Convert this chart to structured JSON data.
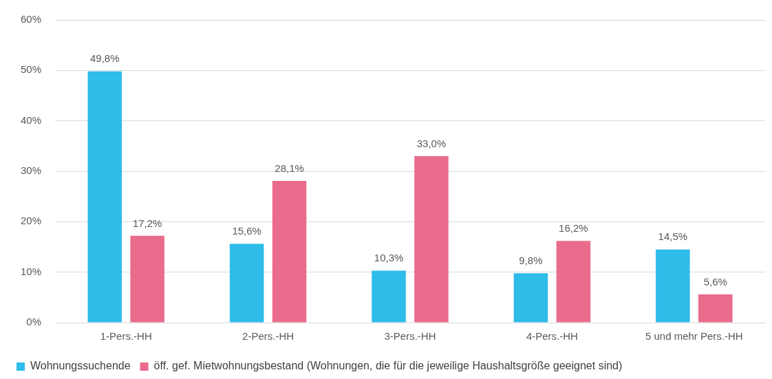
{
  "chart_data": {
    "type": "bar",
    "categories": [
      "1-Pers.-HH",
      "2-Pers.-HH",
      "3-Pers.-HH",
      "4-Pers.-HH",
      "5 und mehr Pers.-HH"
    ],
    "series": [
      {
        "name": "Wohnungssuchende",
        "color": "#2ebce9",
        "values": [
          49.8,
          15.6,
          10.3,
          9.8,
          14.5
        ],
        "value_labels": [
          "49,8%",
          "15,6%",
          "10,3%",
          "9,8%",
          "14,5%"
        ]
      },
      {
        "name": "öff. gef. Mietwohnungsbestand (Wohnungen, die für die jeweilige Haushaltsgröße geeignet sind)",
        "color": "#ea6c8d",
        "values": [
          17.2,
          28.1,
          33.0,
          16.2,
          5.6
        ],
        "value_labels": [
          "17,2%",
          "28,1%",
          "33,0%",
          "16,2%",
          "5,6%"
        ]
      }
    ],
    "ylim": [
      0,
      60
    ],
    "yticks": [
      {
        "value": 0,
        "label": "0%"
      },
      {
        "value": 10,
        "label": "10%"
      },
      {
        "value": 20,
        "label": "20%"
      },
      {
        "value": 30,
        "label": "30%"
      },
      {
        "value": 40,
        "label": "40%"
      },
      {
        "value": 50,
        "label": "50%"
      },
      {
        "value": 60,
        "label": "60%"
      }
    ],
    "grid": "y",
    "legend": "bottom"
  }
}
